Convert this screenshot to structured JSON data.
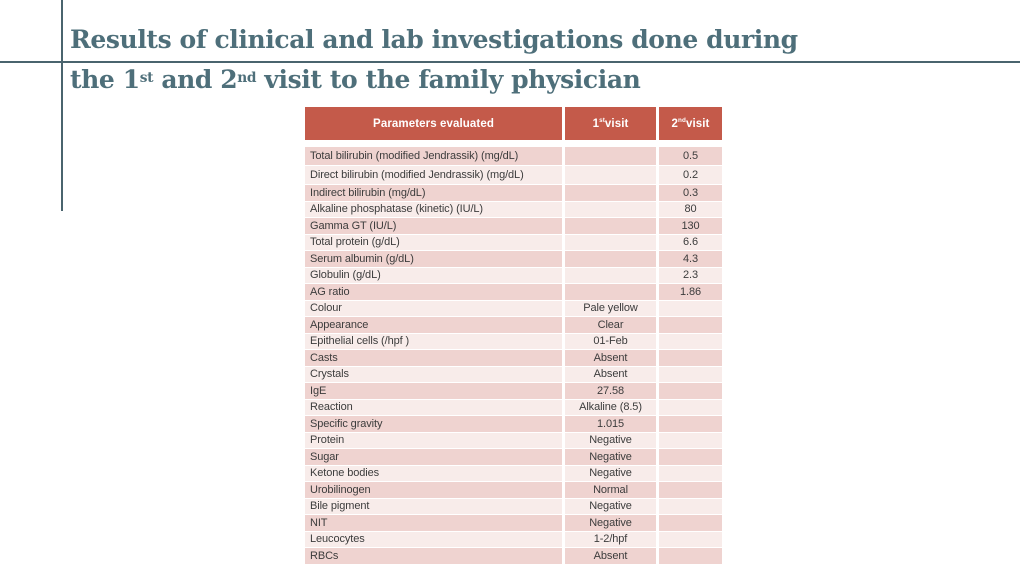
{
  "title": {
    "line1": "Results of clinical and lab investigations done during",
    "line2_pre": "the 1",
    "line2_sup1": "st",
    "line2_mid": " and 2",
    "line2_sup2": "nd",
    "line2_post": " visit to the family physician"
  },
  "colors": {
    "title_teal": "#4e6f7a",
    "divider_teal": "#4a646e",
    "header_red": "#c45a4a",
    "row_dark_pink": "#efd3d0",
    "row_light_pink": "#f8ecea",
    "body_text": "#3c3c3c",
    "header_text": "#ffffff"
  },
  "table": {
    "header": {
      "parameters": "Parameters evaluated",
      "visit1_base": "1",
      "visit1_sup": "st",
      "visit1_rest": " visit",
      "visit2_base": "2",
      "visit2_sup": "nd",
      "visit2_rest": " visit"
    },
    "rows": [
      {
        "param": "Total bilirubin (modified Jendrassik) (mg/dL)",
        "visit1": "",
        "visit2": "0.5"
      },
      {
        "param": "Direct bilirubin (modified Jendrassik) (mg/dL)",
        "visit1": "",
        "visit2": "0.2"
      },
      {
        "param": "Indirect bilirubin (mg/dL)",
        "visit1": "",
        "visit2": "0.3"
      },
      {
        "param": "Alkaline phosphatase (kinetic) (IU/L)",
        "visit1": "",
        "visit2": "80"
      },
      {
        "param": "Gamma GT (IU/L)",
        "visit1": "",
        "visit2": "130"
      },
      {
        "param": "Total protein (g/dL)",
        "visit1": "",
        "visit2": "6.6"
      },
      {
        "param": "Serum albumin (g/dL)",
        "visit1": "",
        "visit2": "4.3"
      },
      {
        "param": "Globulin (g/dL)",
        "visit1": "",
        "visit2": "2.3"
      },
      {
        "param": "AG ratio",
        "visit1": "",
        "visit2": "1.86"
      },
      {
        "param": "Colour",
        "visit1": "Pale yellow",
        "visit2": ""
      },
      {
        "param": "Appearance",
        "visit1": "Clear",
        "visit2": ""
      },
      {
        "param": "Epithelial cells (/hpf )",
        "visit1": "01-Feb",
        "visit2": ""
      },
      {
        "param": "Casts",
        "visit1": "Absent",
        "visit2": ""
      },
      {
        "param": "Crystals",
        "visit1": "Absent",
        "visit2": ""
      },
      {
        "param": "IgE",
        "visit1": "27.58",
        "visit2": ""
      },
      {
        "param": "Reaction",
        "visit1": "Alkaline (8.5)",
        "visit2": ""
      },
      {
        "param": "Specific gravity",
        "visit1": "1.015",
        "visit2": ""
      },
      {
        "param": "Protein",
        "visit1": "Negative",
        "visit2": ""
      },
      {
        "param": "Sugar",
        "visit1": "Negative",
        "visit2": ""
      },
      {
        "param": "Ketone bodies",
        "visit1": "Negative",
        "visit2": ""
      },
      {
        "param": "Urobilinogen",
        "visit1": "Normal",
        "visit2": ""
      },
      {
        "param": "Bile pigment",
        "visit1": "Negative",
        "visit2": ""
      },
      {
        "param": "NIT",
        "visit1": "Negative",
        "visit2": ""
      },
      {
        "param": "Leucocytes",
        "visit1": "1-2/hpf",
        "visit2": ""
      },
      {
        "param": "RBCs",
        "visit1": "Absent",
        "visit2": ""
      }
    ]
  }
}
